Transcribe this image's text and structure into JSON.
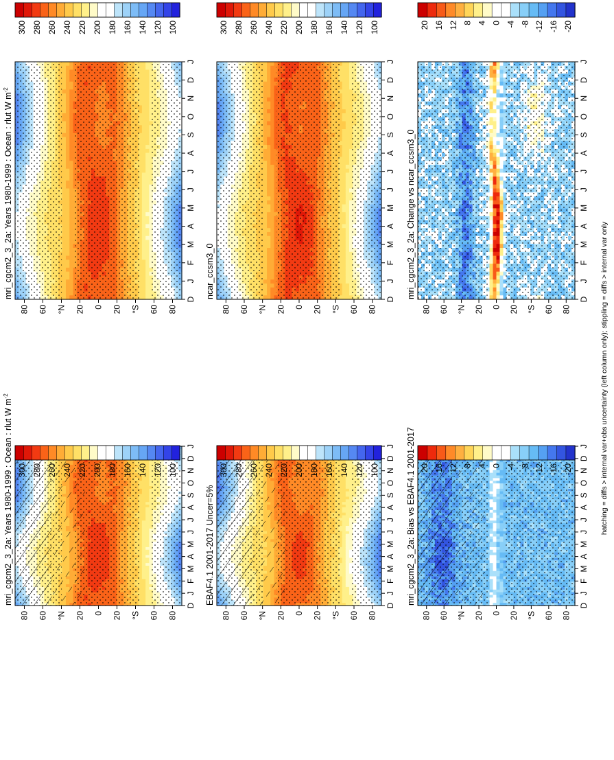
{
  "figure": {
    "footnote": "hatching = diffs > internal var+obs uncertainty (left column only); stippling = diffs > internal var only"
  },
  "colors": {
    "absolute_scale": [
      "#2222dd",
      "#3344e8",
      "#4466ee",
      "#5588f2",
      "#66a6f5",
      "#7dbcf6",
      "#9dd2f8",
      "#bde4fa",
      "#ffffff",
      "#ffffff",
      "#fffbc8",
      "#fff08a",
      "#ffe066",
      "#ffca4a",
      "#ffac36",
      "#ff8a26",
      "#fa6318",
      "#f23a12",
      "#e01808",
      "#cc0000"
    ],
    "diff_scale": [
      "#2233cc",
      "#3355e0",
      "#4477ee",
      "#55a0f2",
      "#66bbf5",
      "#88cff8",
      "#aae0fa",
      "#ffffff",
      "#ffffff",
      "#fffbc8",
      "#fff08a",
      "#ffd558",
      "#ffb040",
      "#ff8a28",
      "#f85a18",
      "#ee2a0c",
      "#cc0000"
    ]
  },
  "chart_data": [
    {
      "id": "top-left",
      "type": "heatmap",
      "title": "mri_cgcm2_3_2a: Years 1980-1999 : Ocean : rlut W m",
      "title_sup": "-2",
      "x": [
        "D",
        "J",
        "F",
        "M",
        "A",
        "M",
        "J",
        "J",
        "A",
        "S",
        "O",
        "N",
        "D",
        "J"
      ],
      "y_ticks": [
        "80",
        "60",
        "°N",
        "20",
        "0",
        "20",
        "°S",
        "60",
        "80"
      ],
      "colorbar_labels": [
        "300",
        "280",
        "260",
        "240",
        "220",
        "200",
        "180",
        "160",
        "140",
        "120",
        "100"
      ],
      "value_range": [
        100,
        300
      ],
      "scale": "absolute",
      "field": "model",
      "hatch": "both"
    },
    {
      "id": "top-right",
      "type": "heatmap",
      "title": "mri_cgcm2_3_2a: Years 1980-1999 : Ocean : rlut W m",
      "title_sup": "-2",
      "x": [
        "D",
        "J",
        "F",
        "M",
        "A",
        "M",
        "J",
        "J",
        "A",
        "S",
        "O",
        "N",
        "D",
        "J"
      ],
      "y_ticks": [
        "80",
        "60",
        "°N",
        "20",
        "0",
        "20",
        "°S",
        "60",
        "80"
      ],
      "colorbar_labels": [
        "300",
        "280",
        "260",
        "240",
        "220",
        "200",
        "180",
        "160",
        "140",
        "120",
        "100"
      ],
      "value_range": [
        100,
        300
      ],
      "scale": "absolute",
      "field": "model",
      "hatch": "dots"
    },
    {
      "id": "middle-left",
      "type": "heatmap",
      "title": "EBAF4.1 2001-2017 Uncer=5%",
      "title_sup": "",
      "x": [
        "D",
        "J",
        "F",
        "M",
        "A",
        "M",
        "J",
        "J",
        "A",
        "S",
        "O",
        "N",
        "D",
        "J"
      ],
      "y_ticks": [
        "80",
        "60",
        "°N",
        "20",
        "0",
        "20",
        "°S",
        "60",
        "80"
      ],
      "colorbar_labels": [
        "300",
        "280",
        "260",
        "240",
        "220",
        "200",
        "180",
        "160",
        "140",
        "120",
        "100"
      ],
      "value_range": [
        100,
        300
      ],
      "scale": "absolute",
      "field": "obs",
      "hatch": "both"
    },
    {
      "id": "middle-right",
      "type": "heatmap",
      "title": "ncar_ccsm3_0",
      "title_sup": "",
      "x": [
        "D",
        "J",
        "F",
        "M",
        "A",
        "M",
        "J",
        "J",
        "A",
        "S",
        "O",
        "N",
        "D",
        "J"
      ],
      "y_ticks": [
        "80",
        "60",
        "°N",
        "20",
        "0",
        "20",
        "°S",
        "60",
        "80"
      ],
      "colorbar_labels": [
        "300",
        "280",
        "260",
        "240",
        "220",
        "200",
        "180",
        "160",
        "140",
        "120",
        "100"
      ],
      "value_range": [
        100,
        300
      ],
      "scale": "absolute",
      "field": "ref",
      "hatch": "dots"
    },
    {
      "id": "bottom-left",
      "type": "heatmap",
      "title": "mri_cgcm2_3_2a: Bias vs EBAF4.1 2001-2017",
      "title_sup": "",
      "x": [
        "D",
        "J",
        "F",
        "M",
        "A",
        "M",
        "J",
        "J",
        "A",
        "S",
        "O",
        "N",
        "D",
        "J"
      ],
      "y_ticks": [
        "80",
        "60",
        "°N",
        "20",
        "0",
        "20",
        "°S",
        "60",
        "80"
      ],
      "colorbar_labels": [
        "20",
        "16",
        "12",
        "8",
        "4",
        "0",
        "-4",
        "-8",
        "-12",
        "-16",
        "-20"
      ],
      "value_range": [
        -22,
        22
      ],
      "scale": "diff",
      "field": "bias",
      "hatch": "both"
    },
    {
      "id": "bottom-right",
      "type": "heatmap",
      "title": "mri_cgcm2_3_2a: Change vs ncar_ccsm3_0",
      "title_sup": "",
      "x": [
        "D",
        "J",
        "F",
        "M",
        "A",
        "M",
        "J",
        "J",
        "A",
        "S",
        "O",
        "N",
        "D",
        "J"
      ],
      "y_ticks": [
        "80",
        "60",
        "°N",
        "20",
        "0",
        "20",
        "°S",
        "60",
        "80"
      ],
      "colorbar_labels": [
        "20",
        "16",
        "12",
        "8",
        "4",
        "0",
        "-4",
        "-8",
        "-12",
        "-16",
        "-20"
      ],
      "value_range": [
        -22,
        22
      ],
      "scale": "diff",
      "field": "change",
      "hatch": "dots"
    }
  ]
}
